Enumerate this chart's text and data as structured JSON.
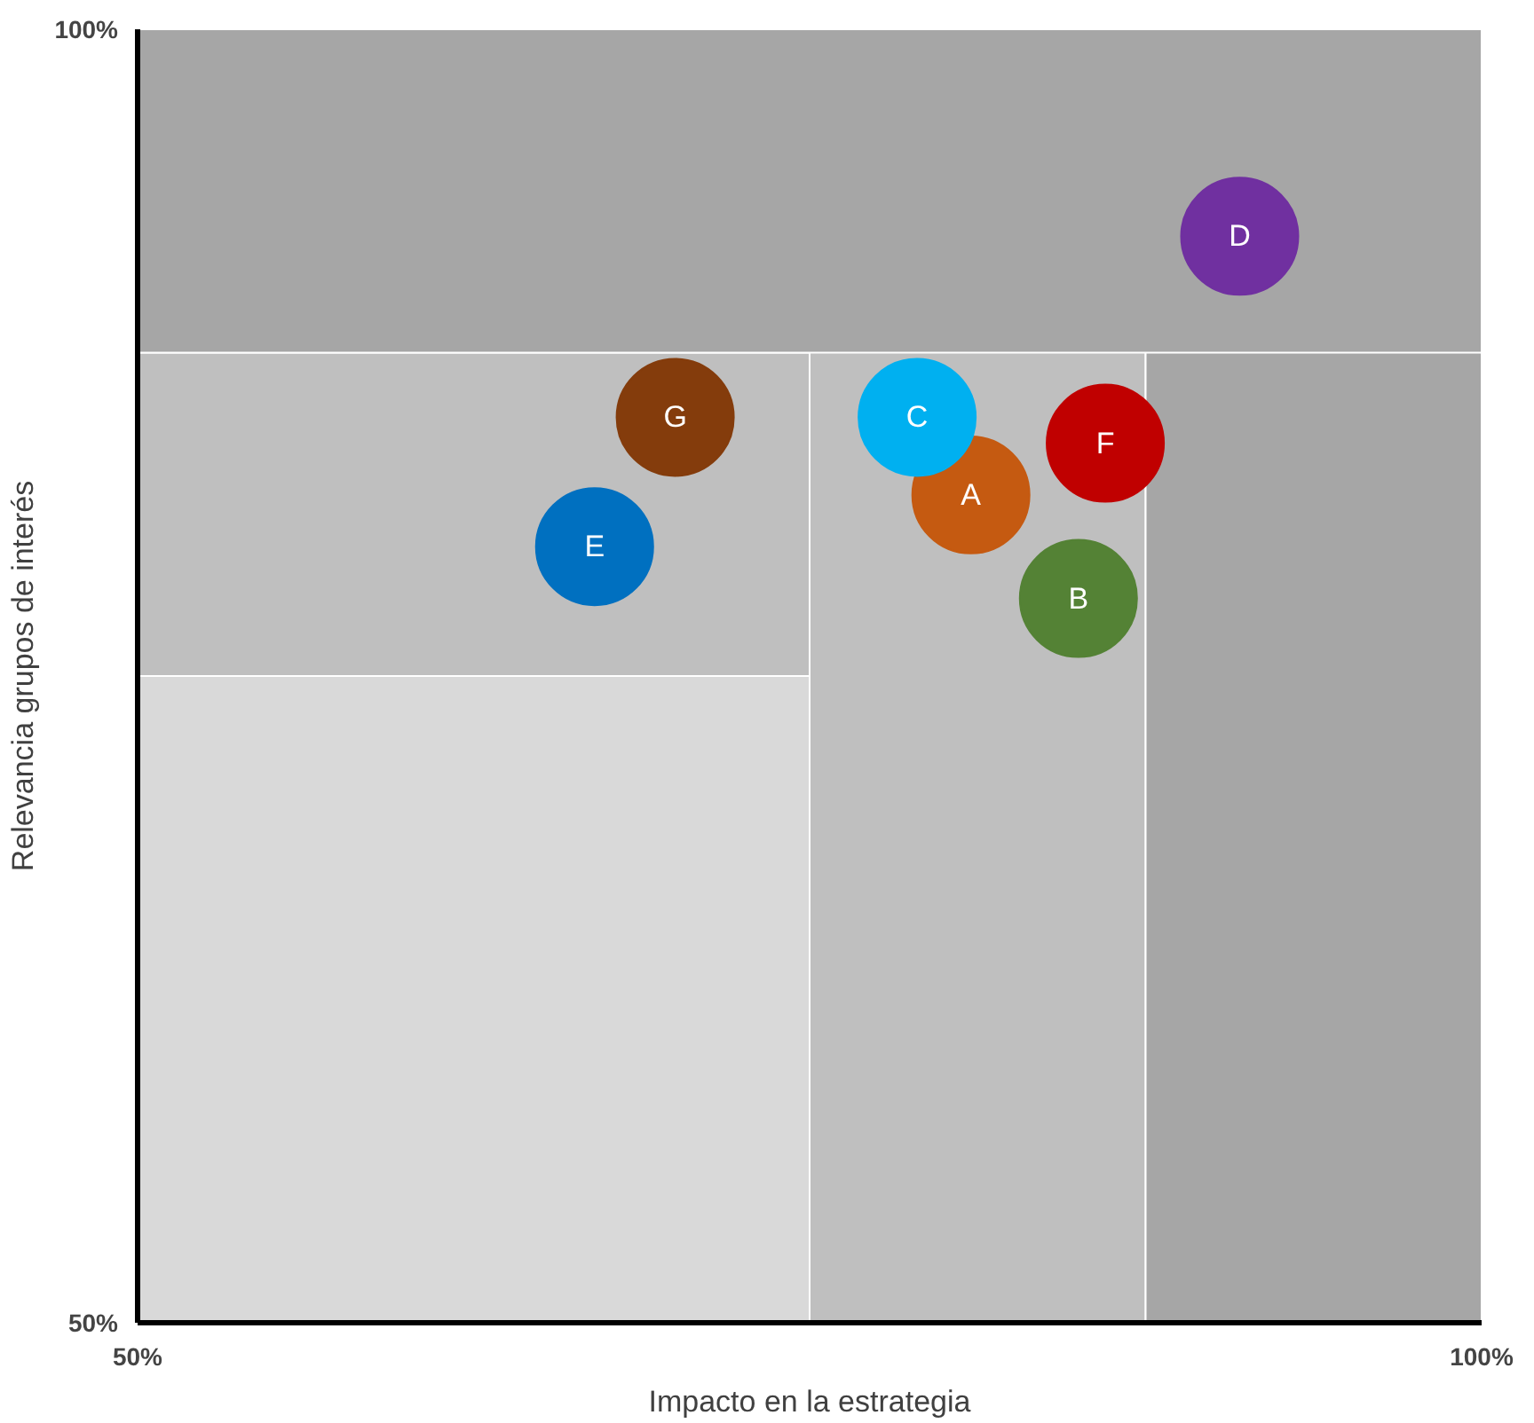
{
  "chart_data": {
    "type": "scatter",
    "xlabel": "Impacto en la estrategia",
    "ylabel": "Relevancia grupos de interés",
    "xlim": [
      50,
      100
    ],
    "ylim": [
      50,
      100
    ],
    "xticks": [
      {
        "value": 50,
        "label": "50%"
      },
      {
        "value": 100,
        "label": "100%"
      }
    ],
    "yticks": [
      {
        "value": 50,
        "label": "50%"
      },
      {
        "value": 100,
        "label": "100%"
      }
    ],
    "marker": "circle",
    "legend": false,
    "bands": [
      {
        "axis": "y",
        "from": 75,
        "to": 87.5,
        "color": "#bfbfbf"
      },
      {
        "axis": "x",
        "from": 75,
        "to": 87.5,
        "color": "#bfbfbf"
      },
      {
        "axis": "x",
        "from": 87.5,
        "to": 100,
        "color": "#a6a6a6"
      },
      {
        "axis": "y",
        "from": 87.5,
        "to": 100,
        "color": "#a6a6a6"
      }
    ],
    "series": [
      {
        "name": "A",
        "color": "#c55a11",
        "x": [
          81
        ],
        "values": [
          82
        ]
      },
      {
        "name": "B",
        "color": "#548235",
        "x": [
          85
        ],
        "values": [
          78
        ]
      },
      {
        "name": "C",
        "color": "#00b0f0",
        "x": [
          79
        ],
        "values": [
          85
        ]
      },
      {
        "name": "D",
        "color": "#7030a0",
        "x": [
          91
        ],
        "values": [
          92
        ]
      },
      {
        "name": "E",
        "color": "#0070c0",
        "x": [
          67
        ],
        "values": [
          80
        ]
      },
      {
        "name": "F",
        "color": "#c00000",
        "x": [
          86
        ],
        "values": [
          84
        ]
      },
      {
        "name": "G",
        "color": "#843c0c",
        "x": [
          70
        ],
        "values": [
          85
        ]
      }
    ]
  }
}
